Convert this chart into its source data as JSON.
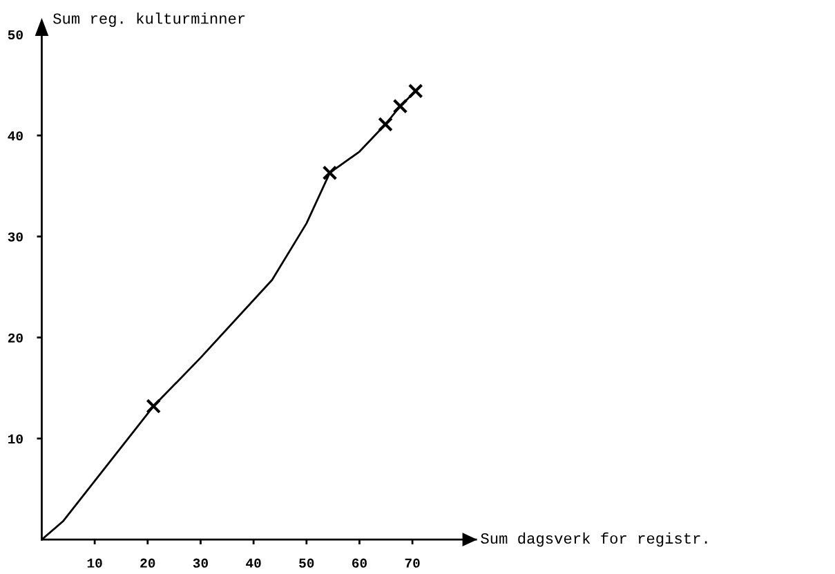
{
  "chart_data": {
    "type": "line",
    "xlabel": "Sum dagsverk for registr.",
    "ylabel": "Sum reg. kulturminner",
    "xlim": [
      0,
      82
    ],
    "ylim": [
      0,
      50
    ],
    "xticks": [
      10,
      20,
      30,
      40,
      50,
      60,
      70
    ],
    "yticks": [
      10,
      20,
      30,
      40,
      50
    ],
    "grid": false,
    "legend": false,
    "series": [
      {
        "type": "line",
        "color": "#000000",
        "marker": "none",
        "line_style": "solid",
        "x": [
          0,
          4,
          21.1,
          30,
          43.5,
          50,
          54.4,
          60,
          64.9,
          67.7,
          70.6
        ],
        "values": [
          0,
          1.8,
          13.2,
          18,
          25.7,
          31.3,
          36.3,
          38.4,
          41.1,
          42.9,
          44.4
        ]
      },
      {
        "type": "scatter",
        "color": "#000000",
        "marker": "cross",
        "x": [
          21.1,
          54.4,
          64.9,
          67.7,
          70.6
        ],
        "values": [
          13.2,
          36.3,
          41.1,
          42.9,
          44.4
        ]
      }
    ]
  }
}
